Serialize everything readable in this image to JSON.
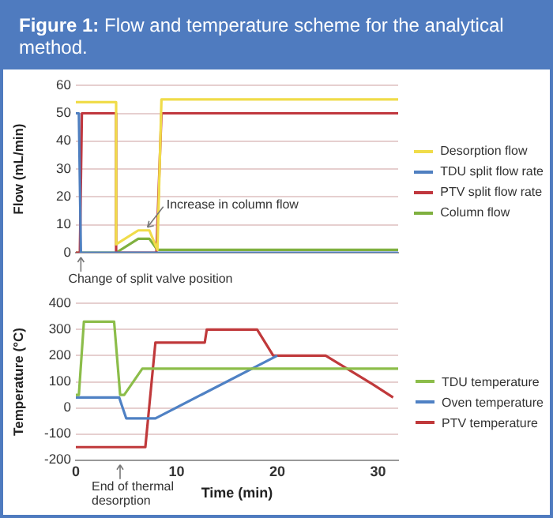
{
  "chart_data": [
    {
      "type": "line",
      "title": "Figure 1: Flow and temperature scheme for the analytical method.",
      "ylabel": "Flow (mL/min)",
      "xlim": [
        0,
        32
      ],
      "ylim": [
        0,
        60
      ],
      "yticks": [
        0,
        10,
        20,
        30,
        40,
        50,
        60
      ],
      "tick_labels": "y",
      "grid": "y",
      "legend": "right",
      "marker": "none",
      "line_style": "solid",
      "series": [
        {
          "name": "Desorption flow",
          "color": "#f0dc4a",
          "x": [
            0,
            4.0,
            4.0,
            6.2,
            7.3,
            8.1,
            8.5,
            32
          ],
          "values": [
            54,
            54,
            3,
            8,
            8,
            1,
            55,
            55
          ]
        },
        {
          "name": "TDU split flow rate",
          "color": "#4f7fc0",
          "x": [
            0,
            0.3,
            0.5,
            32
          ],
          "values": [
            50,
            50,
            0,
            0
          ]
        },
        {
          "name": "PTV split flow rate",
          "color": "#c0373e",
          "x": [
            0,
            0.4,
            0.6,
            4.0,
            4.0,
            8.0,
            8.5,
            32
          ],
          "values": [
            0,
            0,
            50,
            50,
            0,
            0,
            50,
            50
          ]
        },
        {
          "name": "Column flow",
          "color": "#7fb03f",
          "x": [
            0,
            4.0,
            6.2,
            7.3,
            8.1,
            32
          ],
          "values": [
            0,
            0,
            5,
            5,
            1,
            1
          ]
        }
      ],
      "annotations": [
        {
          "text": "Increase in column flow",
          "x": 6.8,
          "y": 8
        },
        {
          "text": "Change of split valve position",
          "x": 0.5,
          "y": 0
        }
      ]
    },
    {
      "type": "line",
      "xlabel": "Time (min)",
      "ylabel": "Temperature (°C)",
      "xlim": [
        0,
        32
      ],
      "xticks": [
        0,
        10,
        20,
        30
      ],
      "ylim": [
        -200,
        400
      ],
      "yticks": [
        -200,
        -100,
        0,
        100,
        200,
        300,
        400
      ],
      "grid": "y",
      "legend": "right",
      "marker": "none",
      "line_style": "solid",
      "series": [
        {
          "name": "TDU temperature",
          "color": "#8cbd4a",
          "x": [
            0,
            0.3,
            0.8,
            3.8,
            4.4,
            4.8,
            6.6,
            32
          ],
          "values": [
            50,
            50,
            330,
            330,
            50,
            50,
            150,
            150
          ]
        },
        {
          "name": "Oven temperature",
          "color": "#4f81c4",
          "x": [
            0,
            4.3,
            5.0,
            7.9,
            20
          ],
          "values": [
            40,
            40,
            -40,
            -40,
            200
          ]
        },
        {
          "name": "PTV temperature",
          "color": "#c0393b",
          "x": [
            0,
            6.9,
            7.9,
            12.8,
            13.0,
            18.0,
            19.6,
            24.8,
            29.5,
            31.5
          ],
          "values": [
            -150,
            -150,
            250,
            250,
            300,
            300,
            200,
            200,
            90,
            40
          ]
        }
      ],
      "annotations": [
        "End of thermal desorption"
      ]
    }
  ]
}
